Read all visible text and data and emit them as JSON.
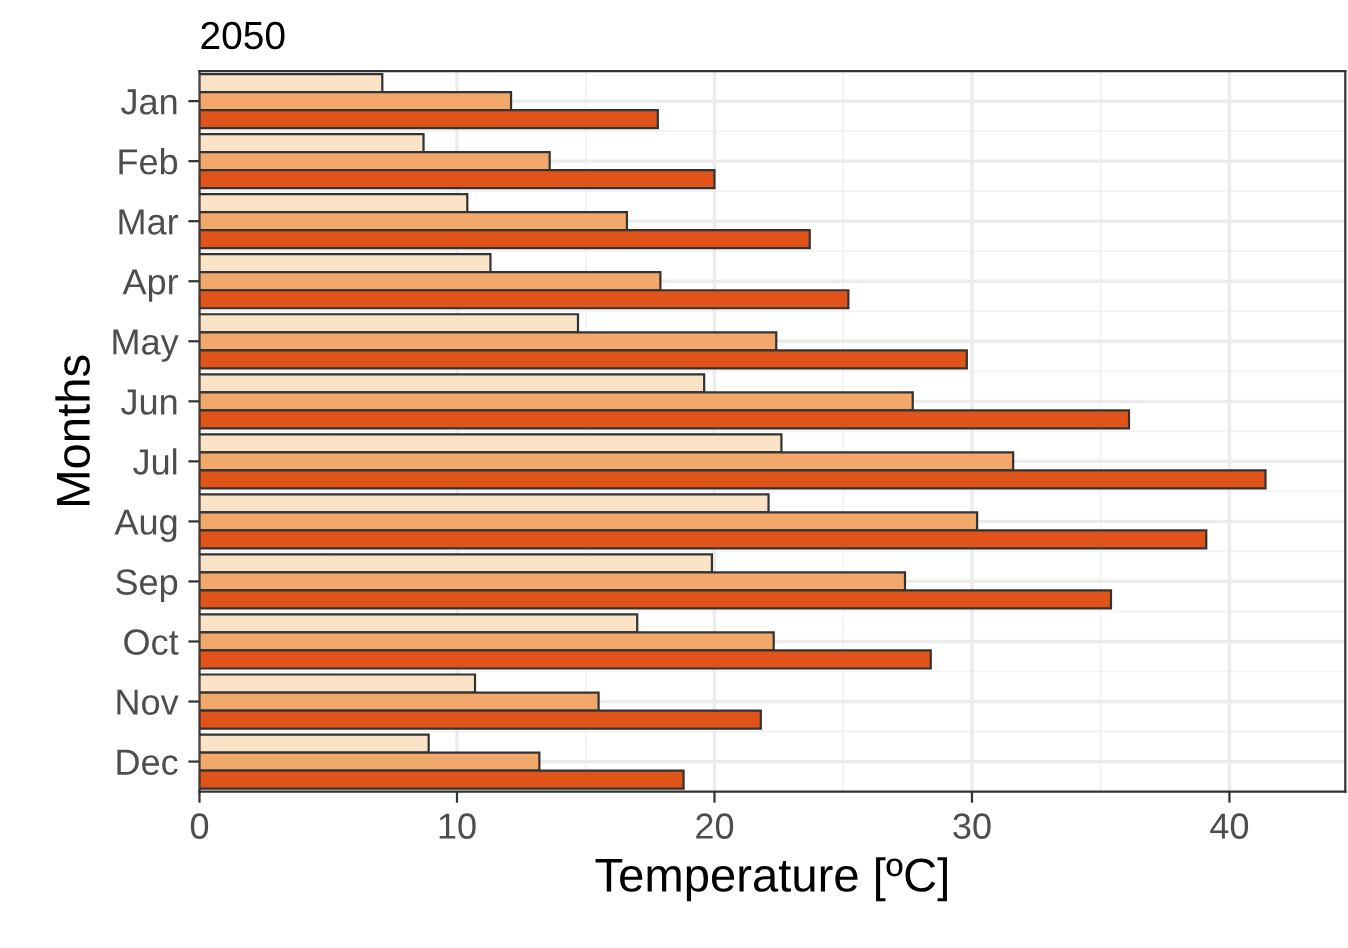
{
  "chart_data": {
    "type": "bar",
    "orientation": "horizontal",
    "title": "2050",
    "xlabel": "Temperature [ºC]",
    "ylabel": "Months",
    "categories": [
      "Jan",
      "Feb",
      "Mar",
      "Apr",
      "May",
      "Jun",
      "Jul",
      "Aug",
      "Sep",
      "Oct",
      "Nov",
      "Dec"
    ],
    "series": [
      {
        "color": "#fbe3c8",
        "values": [
          7.1,
          8.7,
          10.4,
          11.3,
          14.7,
          19.6,
          22.6,
          22.1,
          19.9,
          17.0,
          10.7,
          8.9
        ]
      },
      {
        "color": "#f3a86b",
        "values": [
          12.1,
          13.6,
          16.6,
          17.9,
          22.4,
          27.7,
          31.6,
          30.2,
          27.4,
          22.3,
          15.5,
          13.2
        ]
      },
      {
        "color": "#e05419",
        "values": [
          17.8,
          20.0,
          23.7,
          25.2,
          29.8,
          36.1,
          41.4,
          39.1,
          35.4,
          28.4,
          21.8,
          18.8
        ]
      }
    ],
    "xlim": [
      0,
      44.5
    ],
    "xticks": [
      0,
      10,
      20,
      30,
      40
    ],
    "grid": true,
    "legend": false
  }
}
